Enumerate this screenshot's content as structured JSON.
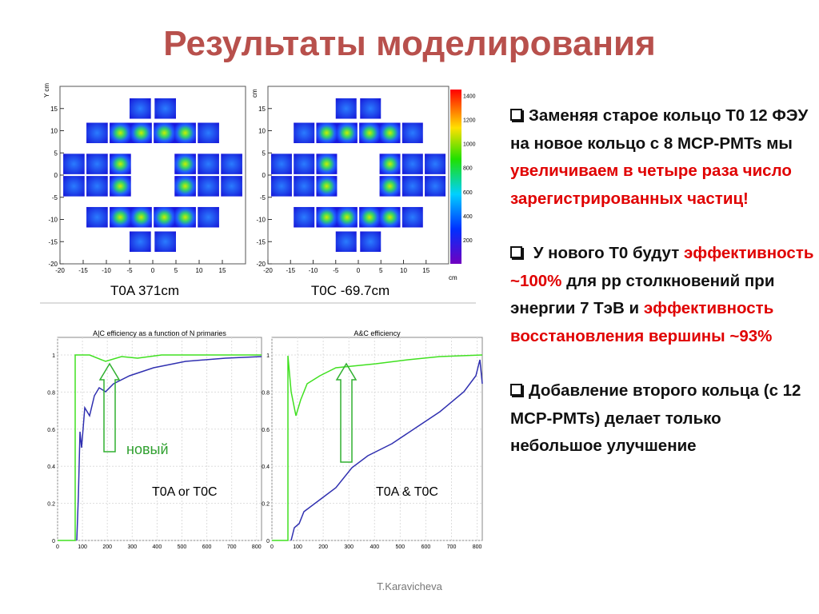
{
  "title": "Результаты моделирования",
  "footer": "T.Karavicheva",
  "bullets": [
    {
      "segments": [
        {
          "text": "Заменяя старое кольцо Т0 12  ФЭУ  на  новое кольцо с 8 MCP-PMTs мы ",
          "red": false
        },
        {
          "text": "увеличиваем  в четыре раза число зарегистрированных частиц!",
          "red": true
        }
      ]
    },
    {
      "segments": [
        {
          "text": "  У нового Т0 будут ",
          "red": false
        },
        {
          "text": "эффективность  ~100%",
          "red": true
        },
        {
          "text": " для pp столкновений при энергии 7 ТэВ и ",
          "red": false
        },
        {
          "text": "эффективность восстановления вершины ~93%",
          "red": true
        }
      ]
    },
    {
      "segments": [
        {
          "text": "Добавление второго кольца (с 12 MCP-PMTs) делает только небольшое улучшение",
          "red": false
        }
      ]
    }
  ],
  "hitmaps": {
    "panels": [
      {
        "caption": "T0A 371cm",
        "ylabel": "Y cm"
      },
      {
        "caption": "T0C -69.7cm",
        "ylabel": "cm",
        "xlabel": "cm"
      }
    ],
    "ticks": [
      -20,
      -15,
      -10,
      -5,
      0,
      5,
      10,
      15
    ],
    "colorbar_ticks": [
      200,
      400,
      600,
      800,
      1000,
      1200,
      1400
    ]
  },
  "efficiency": {
    "panels": [
      {
        "title": "A|C efficiency as a function of N primaries",
        "label": "T0A or T0C",
        "annotation": "новый"
      },
      {
        "title": "A&C efficiency",
        "label": "T0A & T0C"
      }
    ],
    "yticks": [
      0,
      0.2,
      0.4,
      0.6,
      0.8,
      1
    ],
    "xticks": [
      0,
      100,
      200,
      300,
      400,
      500,
      600,
      700,
      800
    ]
  }
}
